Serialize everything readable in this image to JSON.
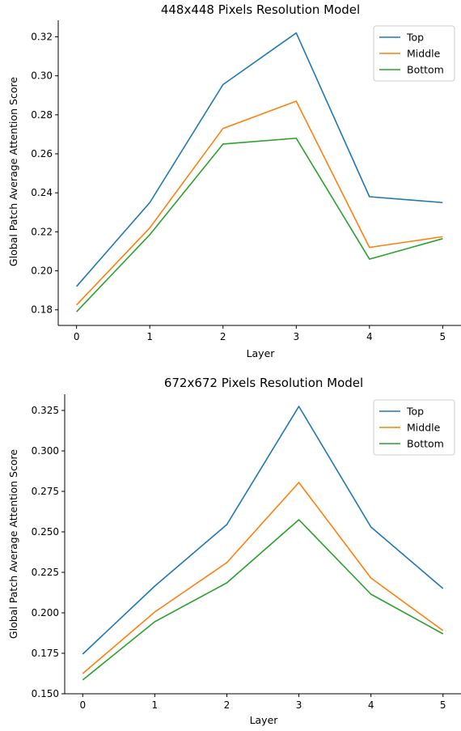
{
  "chart_data": [
    {
      "type": "line",
      "title": "448x448 Pixels Resolution Model",
      "xlabel": "Layer",
      "ylabel": "Global Patch Average Attention Score",
      "x": [
        0,
        1,
        2,
        3,
        4,
        5
      ],
      "xticks": [
        "0",
        "1",
        "2",
        "3",
        "4",
        "5"
      ],
      "yticks": [
        "0.18",
        "0.20",
        "0.22",
        "0.24",
        "0.26",
        "0.28",
        "0.30",
        "0.32"
      ],
      "ytick_values": [
        0.18,
        0.2,
        0.22,
        0.24,
        0.26,
        0.28,
        0.3,
        0.32
      ],
      "xlim": [
        -0.25,
        5.25
      ],
      "ylim": [
        0.172,
        0.3285
      ],
      "grid": false,
      "legend_position": "top-right",
      "series": [
        {
          "name": "Top",
          "color": "#1f77b4",
          "values": [
            0.192,
            0.235,
            0.2955,
            0.322,
            0.238,
            0.235
          ]
        },
        {
          "name": "Middle",
          "color": "#ff7f0e",
          "values": [
            0.1825,
            0.222,
            0.273,
            0.287,
            0.212,
            0.2175
          ]
        },
        {
          "name": "Bottom",
          "color": "#2ca02c",
          "values": [
            0.179,
            0.2185,
            0.265,
            0.268,
            0.206,
            0.2165
          ]
        }
      ]
    },
    {
      "type": "line",
      "title": "672x672 Pixels Resolution Model",
      "xlabel": "Layer",
      "ylabel": "Global Patch Average Attention Score",
      "x": [
        0,
        1,
        2,
        3,
        4,
        5
      ],
      "xticks": [
        "0",
        "1",
        "2",
        "3",
        "4",
        "5"
      ],
      "yticks": [
        "0.150",
        "0.175",
        "0.200",
        "0.225",
        "0.250",
        "0.275",
        "0.300",
        "0.325"
      ],
      "ytick_values": [
        0.15,
        0.175,
        0.2,
        0.225,
        0.25,
        0.275,
        0.3,
        0.325
      ],
      "xlim": [
        -0.25,
        5.25
      ],
      "ylim": [
        0.15,
        0.335
      ],
      "grid": false,
      "legend_position": "top-right",
      "series": [
        {
          "name": "Top",
          "color": "#1f77b4",
          "values": [
            0.1745,
            0.2165,
            0.2545,
            0.3275,
            0.253,
            0.215
          ]
        },
        {
          "name": "Middle",
          "color": "#ff7f0e",
          "values": [
            0.1625,
            0.2005,
            0.231,
            0.2805,
            0.2215,
            0.189
          ]
        },
        {
          "name": "Bottom",
          "color": "#2ca02c",
          "values": [
            0.1585,
            0.1945,
            0.2185,
            0.2575,
            0.2115,
            0.187
          ]
        }
      ]
    }
  ]
}
